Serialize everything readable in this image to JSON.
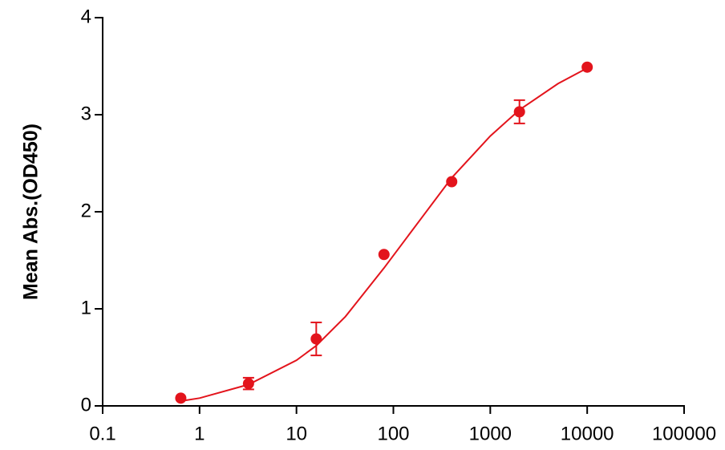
{
  "chart_data": {
    "type": "scatter",
    "y_label": "Mean Abs.(OD450)",
    "x_log": true,
    "xlim": [
      0.1,
      100000
    ],
    "xticks": [
      0.1,
      1,
      10,
      100,
      1000,
      10000,
      100000
    ],
    "ylim": [
      0,
      4
    ],
    "yticks": [
      0,
      1,
      2,
      3,
      4
    ],
    "color": "#e3141c",
    "x": [
      0.64,
      3.2,
      16,
      80,
      400,
      2000,
      10000
    ],
    "values": [
      0.08,
      0.23,
      0.69,
      1.56,
      2.31,
      3.03,
      3.49
    ],
    "errors": [
      null,
      0.06,
      0.17,
      null,
      null,
      0.12,
      null
    ],
    "fit": {
      "x": [
        0.64,
        1,
        3.2,
        10,
        16,
        32,
        80,
        200,
        400,
        1000,
        2000,
        5000,
        10000
      ],
      "values": [
        0.05,
        0.08,
        0.22,
        0.47,
        0.62,
        0.92,
        1.42,
        1.95,
        2.35,
        2.78,
        3.05,
        3.32,
        3.48
      ]
    }
  }
}
